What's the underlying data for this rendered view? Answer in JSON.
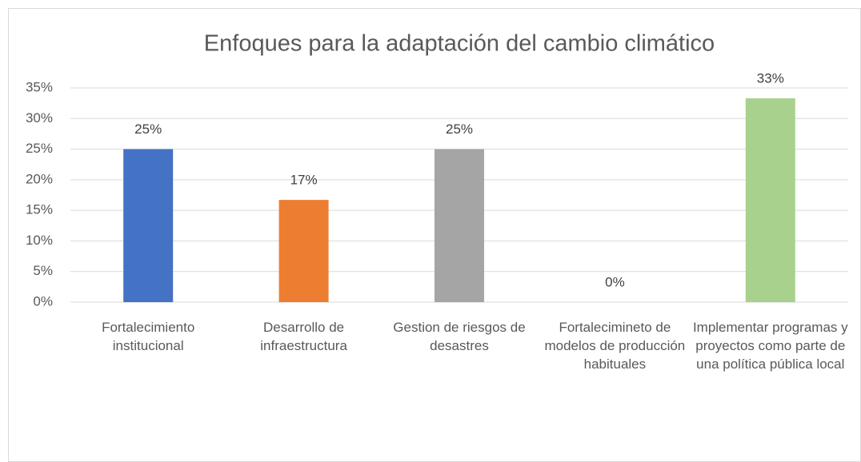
{
  "chart_data": {
    "type": "bar",
    "title": "Enfoques para la adaptación del cambio climático",
    "categories": [
      "Fortalecimiento institucional",
      "Desarrollo de infraestructura",
      "Gestion de riesgos de desastres",
      "Fortalecimineto de modelos de producción habituales",
      "Implementar programas y proyectos como parte de una política pública local"
    ],
    "values": [
      25,
      16.7,
      25,
      0,
      33.3
    ],
    "value_labels": [
      "25%",
      "17%",
      "25%",
      "0%",
      "33%"
    ],
    "colors": [
      "#4472c4",
      "#ed7d31",
      "#a5a5a5",
      "#ffc000",
      "#a9d18e"
    ],
    "ylim": [
      0,
      35
    ],
    "yticks": [
      {
        "value": 0,
        "label": "0%"
      },
      {
        "value": 5,
        "label": "5%"
      },
      {
        "value": 10,
        "label": "10%"
      },
      {
        "value": 15,
        "label": "15%"
      },
      {
        "value": 20,
        "label": "20%"
      },
      {
        "value": 25,
        "label": "25%"
      },
      {
        "value": 30,
        "label": "30%"
      },
      {
        "value": 35,
        "label": "35%"
      }
    ],
    "grid": true
  }
}
